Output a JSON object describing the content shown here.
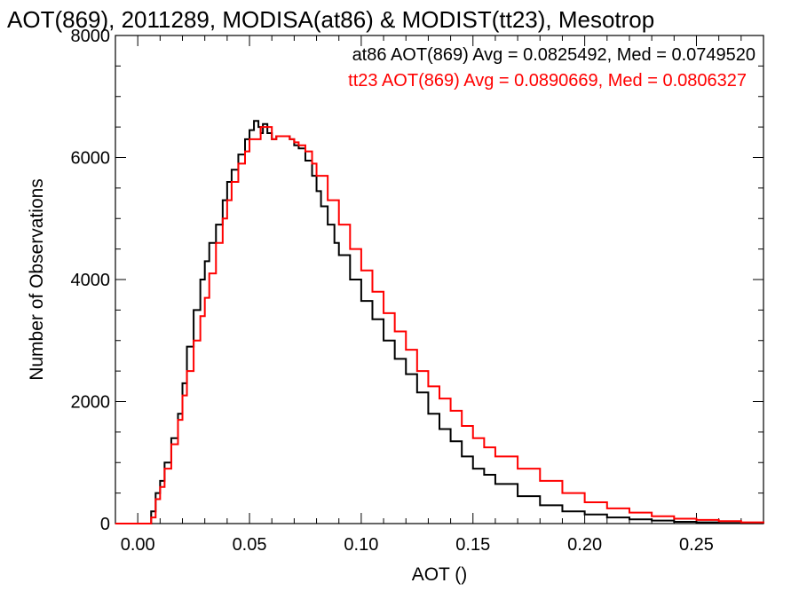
{
  "chart_data": {
    "type": "line",
    "title": "AOT(869), 2011289, MODISA(at86) & MODIST(tt23), Mesotrop",
    "xlabel": "AOT ()",
    "ylabel": "Number of Observations",
    "xlim": [
      -0.01,
      0.28
    ],
    "ylim": [
      0,
      8000
    ],
    "xticks": [
      0.0,
      0.05,
      0.1,
      0.15,
      0.2,
      0.25
    ],
    "xtick_labels": [
      "0.00",
      "0.05",
      "0.10",
      "0.15",
      "0.20",
      "0.25"
    ],
    "yticks": [
      0,
      2000,
      4000,
      6000,
      8000
    ],
    "ytick_labels": [
      "0",
      "2000",
      "4000",
      "6000",
      "8000"
    ],
    "grid": false,
    "legend": "top-right",
    "annotations": [
      {
        "text": "at86 AOT(869) Avg = 0.0825492, Med = 0.0749520",
        "color": "#000000"
      },
      {
        "text": "tt23 AOT(869) Avg = 0.0890669, Med = 0.0806327",
        "color": "#ff0000"
      }
    ],
    "series": [
      {
        "color": "#000000",
        "x": [
          0.003,
          0.006,
          0.008,
          0.01,
          0.012,
          0.015,
          0.018,
          0.02,
          0.022,
          0.025,
          0.028,
          0.03,
          0.032,
          0.035,
          0.038,
          0.04,
          0.042,
          0.045,
          0.048,
          0.05,
          0.052,
          0.054,
          0.055,
          0.056,
          0.058,
          0.06,
          0.062,
          0.065,
          0.068,
          0.07,
          0.072,
          0.075,
          0.078,
          0.08,
          0.082,
          0.085,
          0.088,
          0.09,
          0.095,
          0.1,
          0.105,
          0.11,
          0.115,
          0.12,
          0.125,
          0.13,
          0.135,
          0.14,
          0.145,
          0.15,
          0.155,
          0.16,
          0.17,
          0.18,
          0.19,
          0.2,
          0.21,
          0.22,
          0.23,
          0.24,
          0.25,
          0.26,
          0.27,
          0.28
        ],
        "values": [
          0,
          200,
          500,
          700,
          1000,
          1400,
          1800,
          2300,
          2900,
          3500,
          4000,
          4300,
          4600,
          4900,
          5300,
          5600,
          5800,
          6050,
          6300,
          6450,
          6600,
          6500,
          6400,
          6550,
          6400,
          6300,
          6350,
          6350,
          6300,
          6200,
          6150,
          5950,
          5700,
          5450,
          5200,
          4900,
          4600,
          4400,
          4000,
          3650,
          3350,
          3000,
          2700,
          2450,
          2150,
          1800,
          1550,
          1350,
          1100,
          900,
          800,
          650,
          450,
          300,
          200,
          150,
          100,
          70,
          50,
          30,
          20,
          10,
          5,
          0
        ]
      },
      {
        "color": "#ff0000",
        "x": [
          0.003,
          0.006,
          0.008,
          0.01,
          0.012,
          0.015,
          0.018,
          0.02,
          0.022,
          0.025,
          0.028,
          0.03,
          0.032,
          0.035,
          0.038,
          0.04,
          0.042,
          0.045,
          0.048,
          0.05,
          0.055,
          0.06,
          0.062,
          0.065,
          0.068,
          0.07,
          0.072,
          0.075,
          0.078,
          0.08,
          0.085,
          0.09,
          0.095,
          0.1,
          0.105,
          0.11,
          0.115,
          0.12,
          0.125,
          0.13,
          0.135,
          0.14,
          0.145,
          0.15,
          0.155,
          0.16,
          0.17,
          0.18,
          0.19,
          0.2,
          0.21,
          0.22,
          0.23,
          0.24,
          0.25,
          0.26,
          0.27,
          0.28
        ],
        "values": [
          0,
          100,
          400,
          600,
          900,
          1300,
          1700,
          2100,
          2500,
          3000,
          3400,
          3700,
          4100,
          4600,
          5000,
          5300,
          5600,
          5900,
          6100,
          6300,
          6500,
          6300,
          6350,
          6350,
          6300,
          6250,
          6200,
          6100,
          5900,
          5700,
          5300,
          4900,
          4500,
          4150,
          3800,
          3450,
          3150,
          2850,
          2500,
          2250,
          2050,
          1850,
          1600,
          1400,
          1250,
          1100,
          900,
          700,
          500,
          350,
          250,
          180,
          120,
          80,
          60,
          40,
          20,
          5
        ]
      }
    ]
  }
}
